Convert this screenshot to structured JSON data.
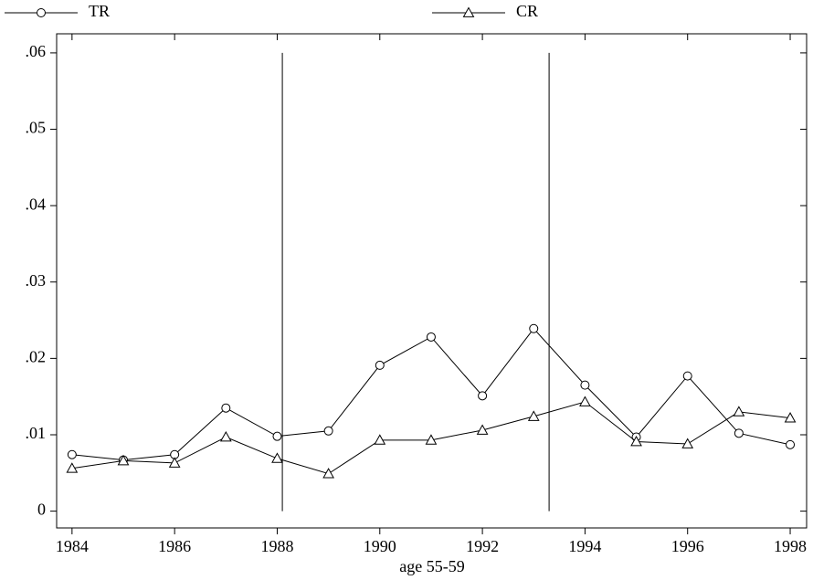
{
  "chart_data": {
    "type": "line",
    "x_label": "age 55-59",
    "x": [
      1984,
      1985,
      1986,
      1987,
      1988,
      1989,
      1990,
      1991,
      1992,
      1993,
      1994,
      1995,
      1996,
      1997,
      1998
    ],
    "series": [
      {
        "name": "TR",
        "color": "#000000",
        "marker": "circle",
        "values": [
          0.0074,
          0.0067,
          0.0074,
          0.0135,
          0.0098,
          0.0105,
          0.0191,
          0.0228,
          0.0151,
          0.0239,
          0.0165,
          0.0097,
          0.0177,
          0.0102,
          0.0087
        ]
      },
      {
        "name": "CR",
        "color": "#000000",
        "marker": "triangle",
        "values": [
          0.0056,
          0.0066,
          0.0063,
          0.0097,
          0.0069,
          0.0049,
          0.0093,
          0.0093,
          0.0106,
          0.0124,
          0.0143,
          0.0091,
          0.0088,
          0.013,
          0.0122
        ]
      }
    ],
    "xlim": [
      1983.7,
      1998.32
    ],
    "xticks": [
      1984,
      1986,
      1988,
      1990,
      1992,
      1994,
      1996,
      1998
    ],
    "ylim": [
      -0.0022,
      0.0625
    ],
    "yticks": [
      0,
      {
        "value": 0.01,
        "label": ".01"
      },
      {
        "value": 0.02,
        "label": ".02"
      },
      {
        "value": 0.03,
        "label": ".03"
      },
      {
        "value": 0.04,
        "label": ".04"
      },
      {
        "value": 0.05,
        "label": ".05"
      },
      {
        "value": 0.06,
        "label": ".06"
      }
    ],
    "vlines": [
      1988.1,
      1993.3
    ],
    "legend": "top",
    "grid": false
  }
}
